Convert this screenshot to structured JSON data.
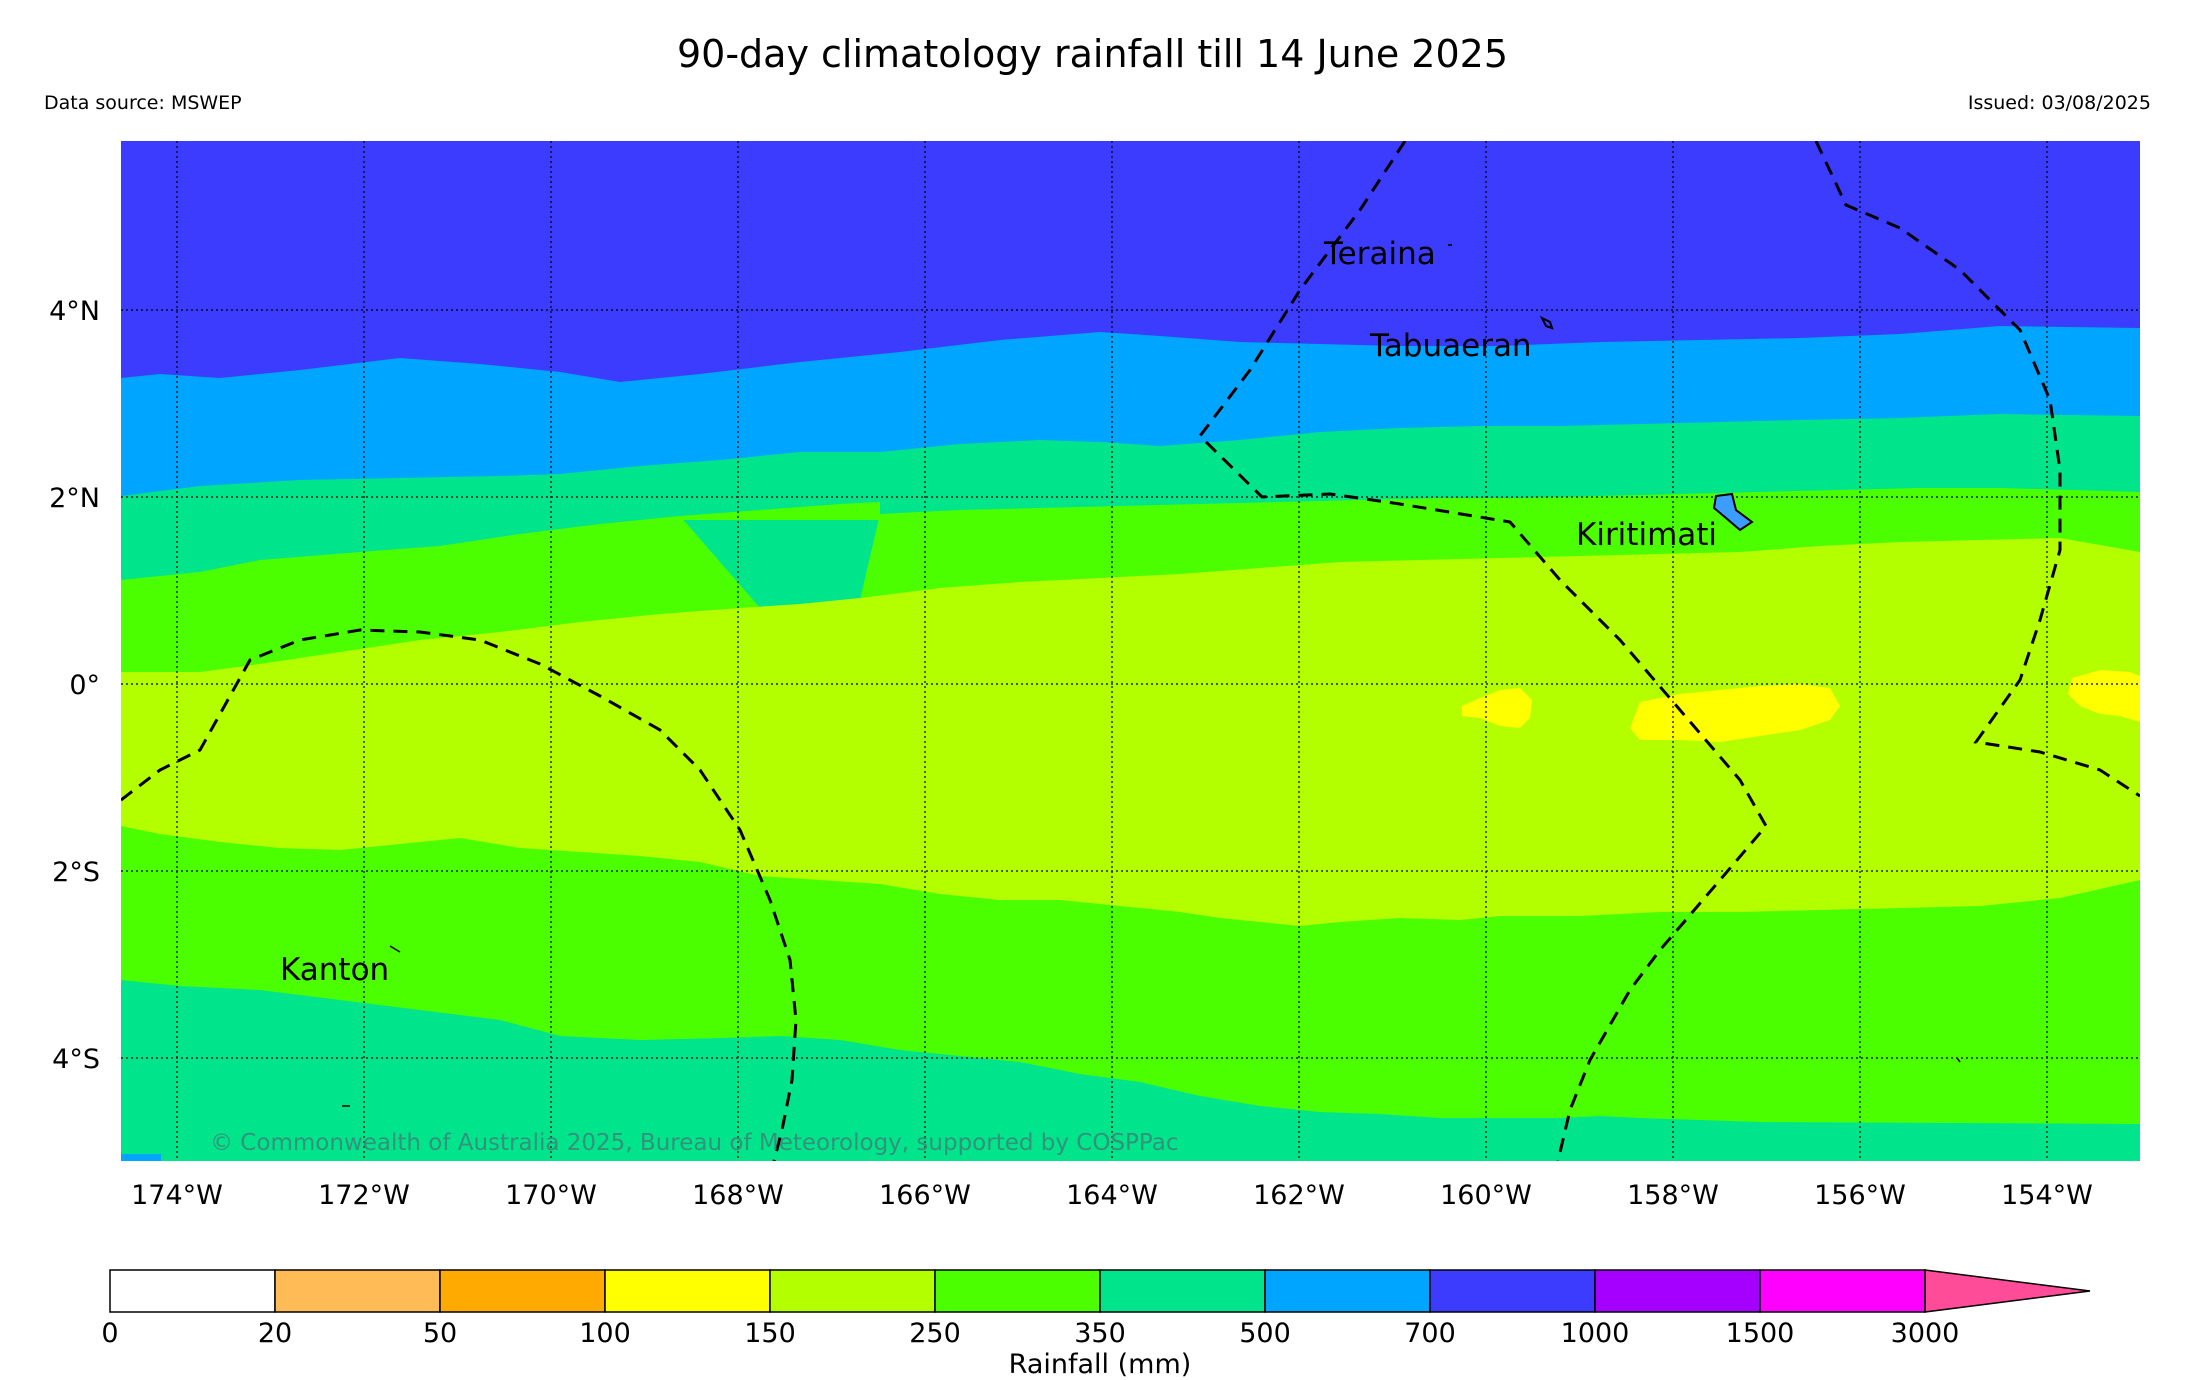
{
  "title": "90-day climatology rainfall till 14 June 2025",
  "data_source": "Data source: MSWEP",
  "issued": "Issued: 03/08/2025",
  "copyright": "© Commonwealth of Australia 2025, Bureau of Meteorology, supported by COSPPac",
  "lat_labels": [
    "4°N",
    "2°N",
    "0°",
    "2°S",
    "4°S"
  ],
  "lon_labels": [
    "174°W",
    "172°W",
    "170°W",
    "168°W",
    "166°W",
    "164°W",
    "162°W",
    "160°W",
    "158°W",
    "156°W",
    "154°W"
  ],
  "places": [
    {
      "name": "Teraina"
    },
    {
      "name": "Tabuaeran"
    },
    {
      "name": "Kiritimati"
    },
    {
      "name": "Kanton"
    }
  ],
  "legend": {
    "title": "Rainfall (mm)",
    "ticks": [
      "0",
      "20",
      "50",
      "100",
      "150",
      "250",
      "350",
      "500",
      "700",
      "1000",
      "1500",
      "3000"
    ],
    "colors": [
      "#ffffff",
      "#ffbb55",
      "#ffaa00",
      "#ffff00",
      "#b3ff00",
      "#4cff00",
      "#00e58c",
      "#00a5ff",
      "#3c3cff",
      "#a500ff",
      "#ff00ff",
      "#ff4c99"
    ]
  },
  "colors": {
    "band_700_1000": "#3c3cff",
    "band_500_700": "#00a5ff",
    "band_350_500": "#00e58c",
    "band_250_350": "#4cff00",
    "band_150_250": "#b3ff00",
    "band_100_150": "#ffff00"
  }
}
